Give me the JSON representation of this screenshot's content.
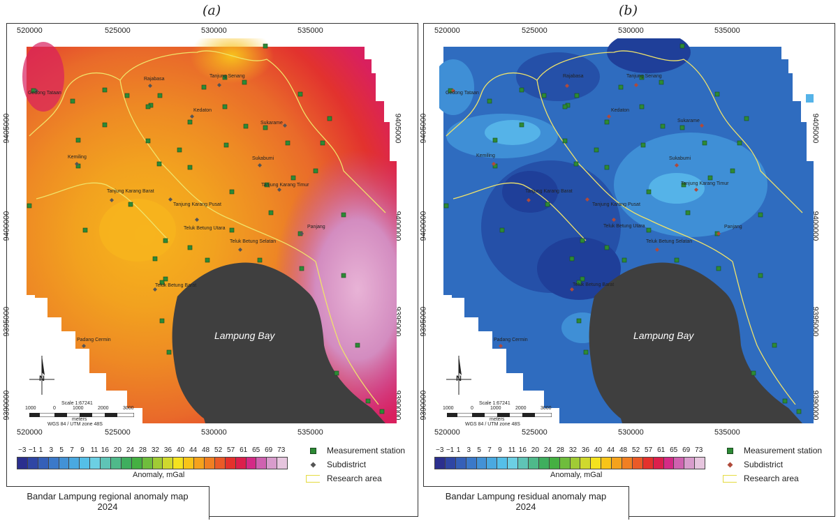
{
  "panels": [
    {
      "letter": "(a)",
      "title_line1": "Bandar Lampung regional anomaly map",
      "title_line2": "2024",
      "bay_label": "Lampung Bay",
      "scale_text": "Scale 1:67241",
      "scale_unit": "meters",
      "projection": "WGS 84 / UTM zone 48S",
      "scale_ticks": [
        "1000",
        "0",
        "1000",
        "2000",
        "3000"
      ],
      "north_label": "N",
      "palette": [
        "#f7bd1a",
        "#f2a21f",
        "#ee8a24",
        "#e96a2a",
        "#e2322e",
        "#d9205e",
        "#c54a9e",
        "#d38cc0"
      ]
    },
    {
      "letter": "(b)",
      "title_line1": "Bandar Lampung residual anomaly map",
      "title_line2": "2024",
      "bay_label": "Lampung Bay",
      "scale_text": "Scale 1:67241",
      "scale_unit": "meters",
      "projection": "WGS 84 / UTM zone 48S",
      "scale_ticks": [
        "1000",
        "0",
        "1000",
        "2000",
        "3000"
      ],
      "north_label": "N",
      "palette": [
        "#1f3f99",
        "#2550a8",
        "#2f6cbf",
        "#3f8fd6",
        "#55b3e8"
      ]
    }
  ],
  "easting_labels": [
    "520000",
    "525000",
    "530000",
    "535000"
  ],
  "northing_labels": [
    "9405000",
    "9400000",
    "9395000",
    "9390000"
  ],
  "subdistricts": [
    "Gedong Tataan",
    "Rajabasa",
    "Tanjung Senang",
    "Kedaton",
    "Sukarame",
    "Kemiling",
    "Sukabumi",
    "Tanjung Karang Barat",
    "Tanjung Karang Pusat",
    "Tanjung Karang Timur",
    "Teluk Betung Utara",
    "Panjang",
    "Teluk Betung Selatan",
    "Teluk Betung Barat",
    "Padang Cermin"
  ],
  "legend": {
    "tick_labels": [
      "−3",
      "−1",
      "1",
      "3",
      "5",
      "7",
      "9",
      "11",
      "16",
      "20",
      "24",
      "28",
      "32",
      "36",
      "40",
      "44",
      "48",
      "52",
      "57",
      "61",
      "65",
      "69",
      "73"
    ],
    "title": "Anomaly, mGal",
    "colors": [
      "#2b2f8e",
      "#2f46a4",
      "#3560b8",
      "#3b79c9",
      "#4392d6",
      "#4aa9e0",
      "#55bfe8",
      "#6ccfe3",
      "#5fc4b6",
      "#4fb98a",
      "#3fae5e",
      "#45b042",
      "#6fbd3c",
      "#a0cb35",
      "#cfd82e",
      "#f4e21f",
      "#f8c418",
      "#f5a21c",
      "#f07f22",
      "#ea5a27",
      "#e4312c",
      "#dc1f4c",
      "#d42a86",
      "#cf62b0",
      "#d89ccc",
      "#e6c5de"
    ],
    "symbols": {
      "station": "Measurement station",
      "subdistrict": "Subdistrict",
      "area": "Research area"
    }
  }
}
